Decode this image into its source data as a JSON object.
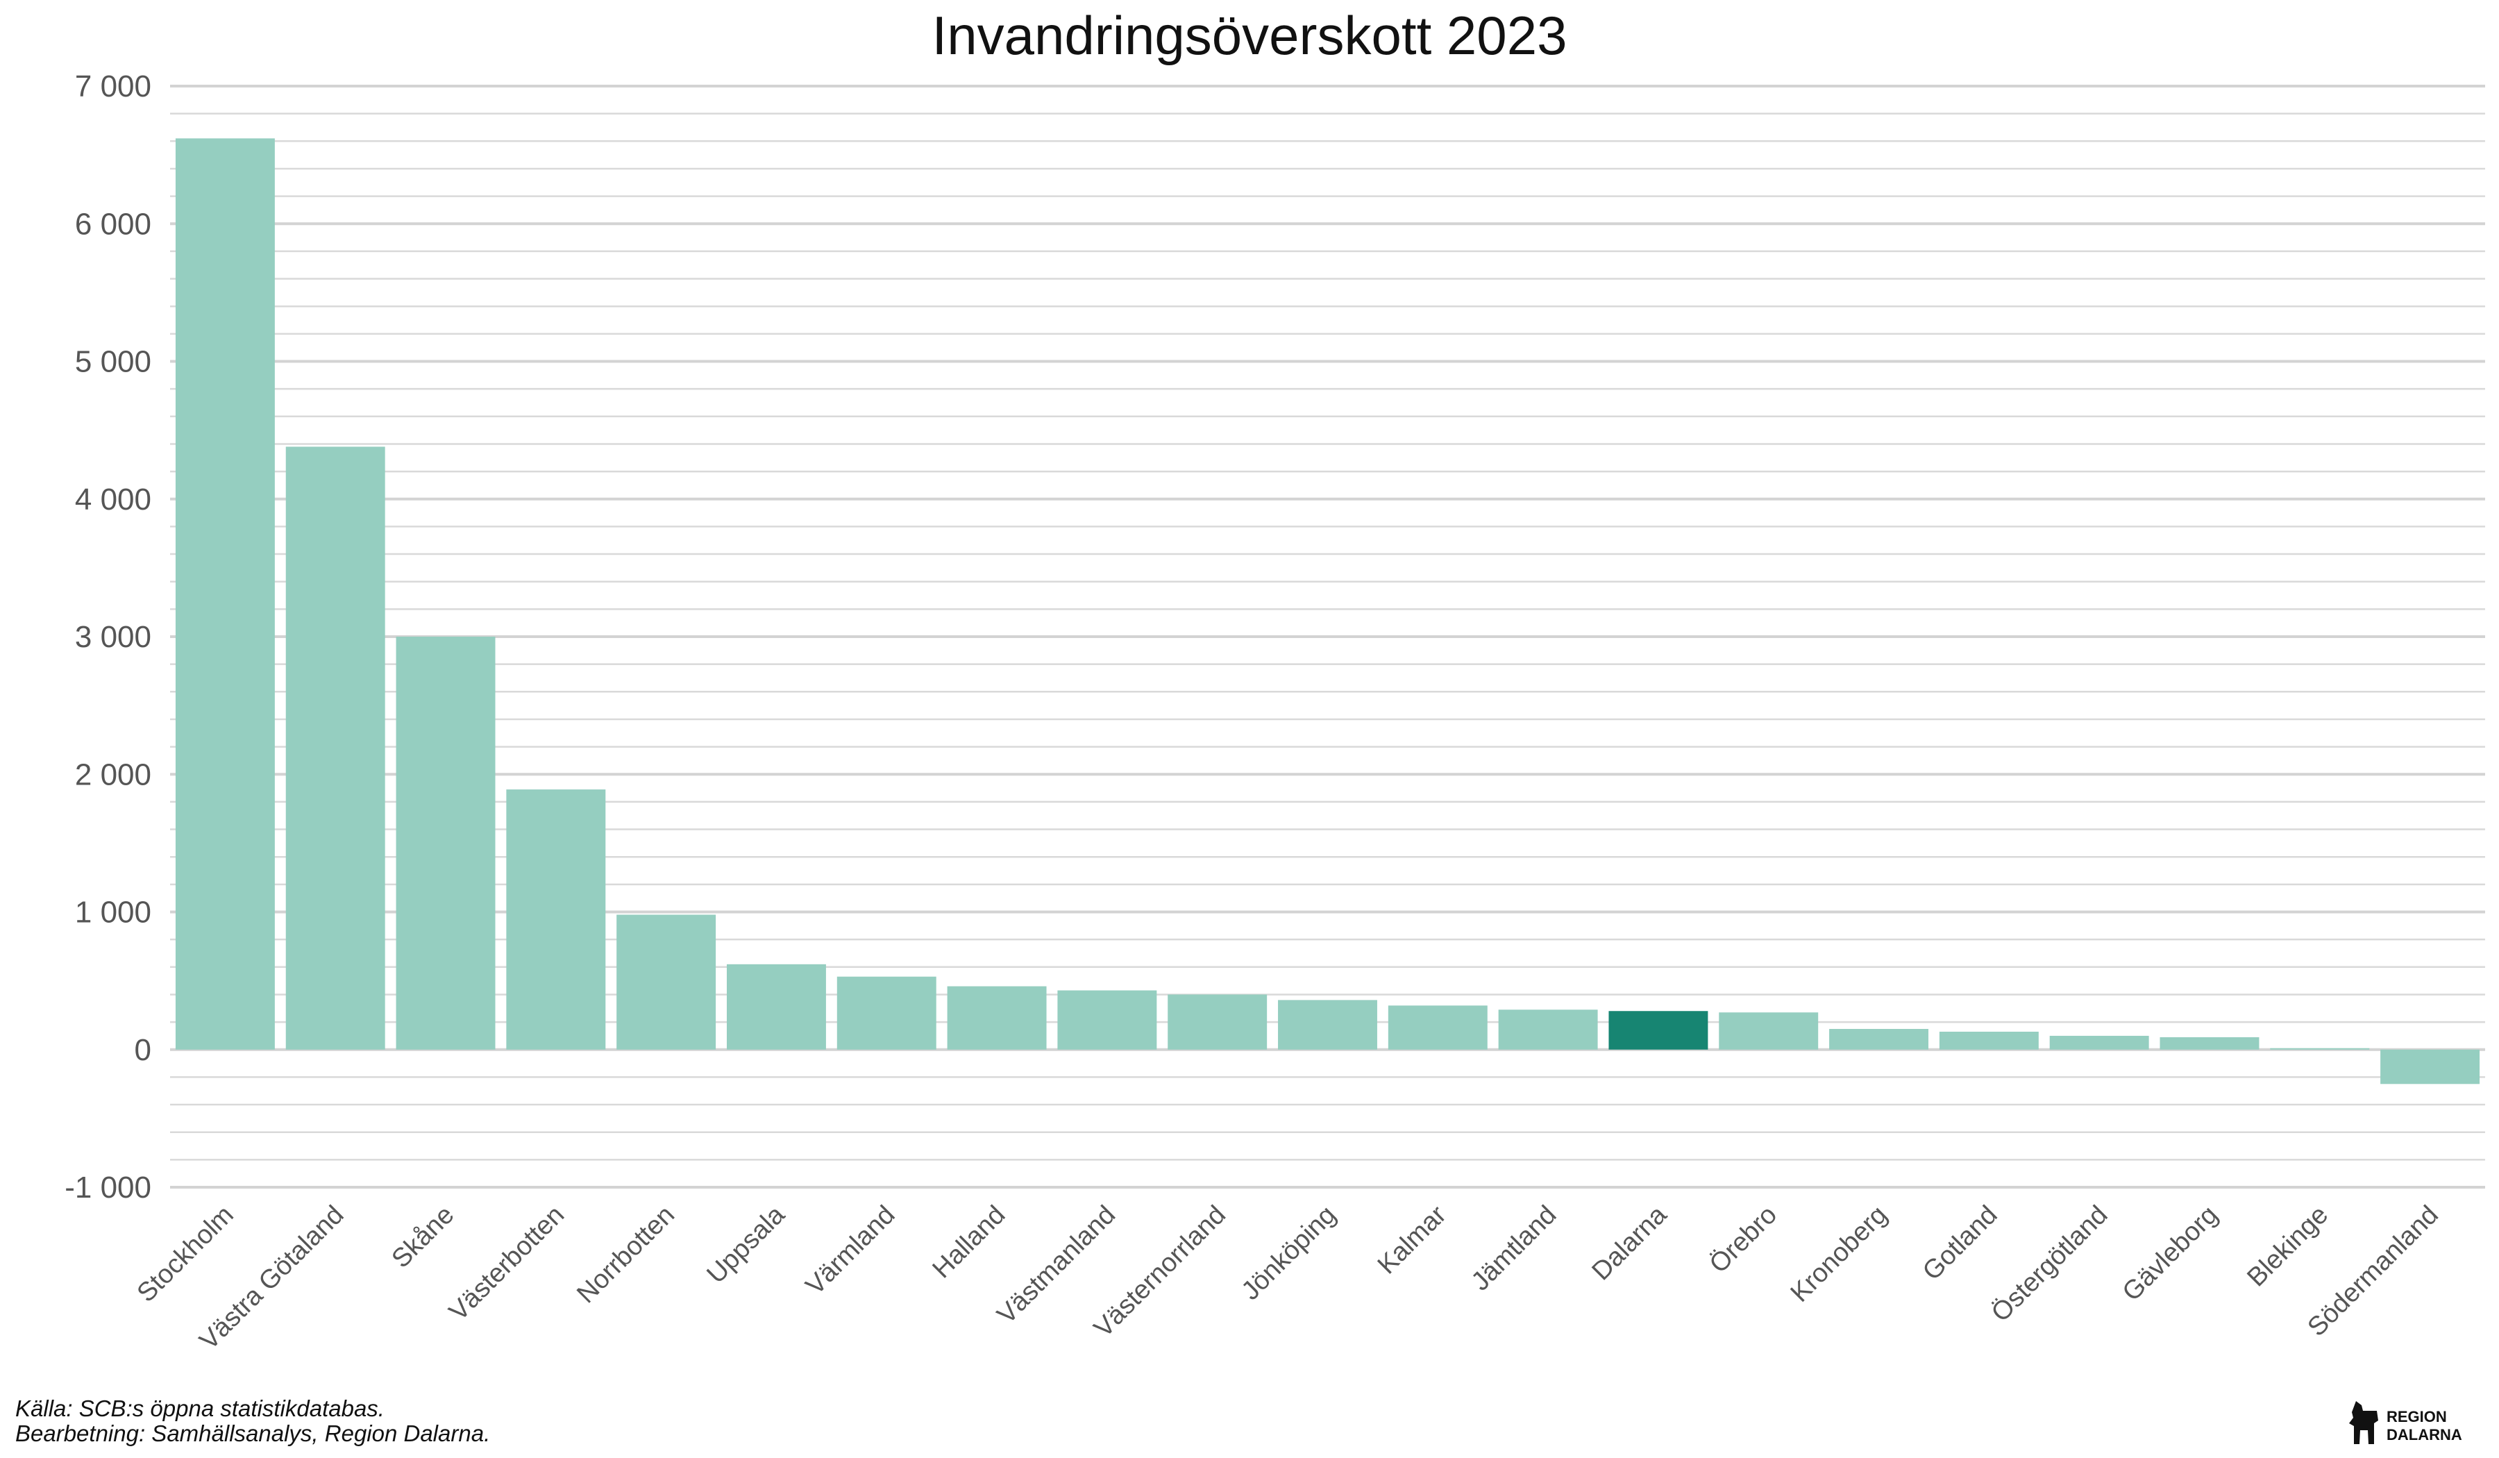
{
  "chart_data": {
    "type": "bar",
    "title": "Invandringsöverskott 2023",
    "xlabel": "",
    "ylabel": "",
    "ylim": [
      -1000,
      7000
    ],
    "y_ticks": [
      -1000,
      0,
      1000,
      2000,
      3000,
      4000,
      5000,
      6000,
      7000
    ],
    "y_tick_labels": [
      "-1 000",
      "0",
      "1 000",
      "2 000",
      "3 000",
      "4 000",
      "5 000",
      "6 000",
      "7 000"
    ],
    "minor_grid_step": 200,
    "grid": true,
    "categories": [
      "Stockholm",
      "Västra Götaland",
      "Skåne",
      "Västerbotten",
      "Norrbotten",
      "Uppsala",
      "Värmland",
      "Halland",
      "Västmanland",
      "Västernorrland",
      "Jönköping",
      "Kalmar",
      "Jämtland",
      "Dalarna",
      "Örebro",
      "Kronoberg",
      "Gotland",
      "Östergötland",
      "Gävleborg",
      "Blekinge",
      "Södermanland"
    ],
    "values": [
      6620,
      4380,
      3000,
      1890,
      980,
      620,
      530,
      460,
      430,
      400,
      360,
      320,
      290,
      280,
      270,
      150,
      130,
      100,
      90,
      10,
      -250
    ],
    "highlight": "Dalarna",
    "colors": {
      "default": "#95cec0",
      "highlight": "#178572",
      "grid_major": "#d3d3d3",
      "grid_minor": "#d9d9d9"
    }
  },
  "captions": {
    "source": "Källa: SCB:s öppna statistikdatabas.",
    "processing": "Bearbetning: Samhällsanalys, Region Dalarna."
  },
  "logo": {
    "icon": "dala-horse-icon",
    "line1": "REGION",
    "line2": "DALARNA"
  }
}
